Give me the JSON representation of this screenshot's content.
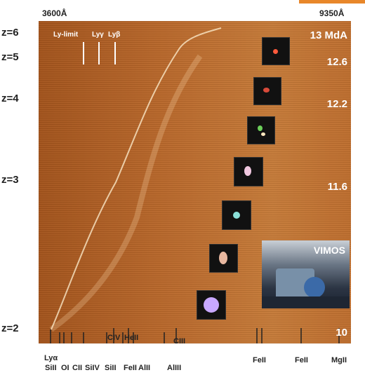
{
  "header": {
    "wavelength_min": "3600Å",
    "wavelength_max": "9350Å"
  },
  "redshift_labels": [
    "z=6",
    "z=5",
    "z=4",
    "z=3",
    "z=2"
  ],
  "top_lines": [
    "Ly-limit",
    "Lyγ",
    "Lyβ"
  ],
  "ages": [
    "13 MdA",
    "12.6",
    "12.2",
    "11.6",
    "10"
  ],
  "inset_label": "VIMOS",
  "emission_lines": {
    "upper_row": [
      "CIV",
      "HeII",
      "CIII",
      "FeII",
      "FeII",
      "MgII"
    ],
    "lower_row": [
      "Lyα",
      "SiII",
      "OI",
      "CII",
      "SiIV",
      "SiII",
      "FeII",
      "AlII",
      "AlIII"
    ]
  },
  "colors": {
    "spectrum_base": "#b8672a",
    "accent_bar": "#e8872a"
  },
  "galaxy_thumbnails": [
    "galaxy-thumb-1",
    "galaxy-thumb-2",
    "galaxy-thumb-3",
    "galaxy-thumb-4",
    "galaxy-thumb-5",
    "galaxy-thumb-6",
    "galaxy-thumb-7"
  ]
}
